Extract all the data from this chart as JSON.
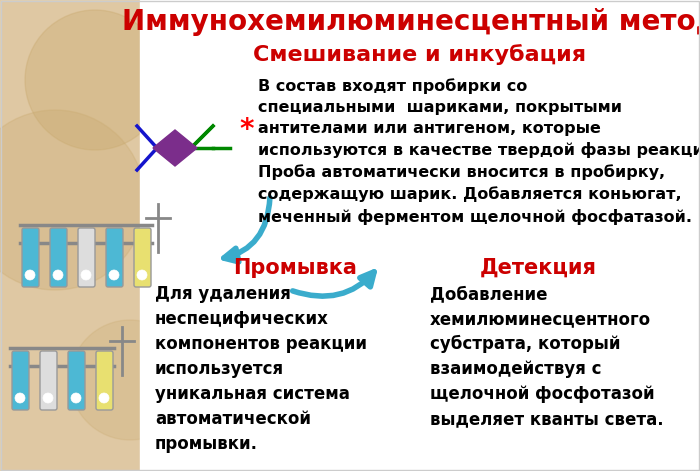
{
  "bg_color": "#f0ebe0",
  "bg_white": "#ffffff",
  "left_panel_color": "#d4b483",
  "title": "Иммунохемилюминесцентный метод",
  "title_color": "#cc0000",
  "title_fontsize": 20,
  "subtitle": "Смешивание и инкубация",
  "subtitle_color": "#cc0000",
  "subtitle_fontsize": 16,
  "section1_title": "Промывка",
  "section1_title_color": "#cc0000",
  "section1_fontsize": 15,
  "section1_text": "Для удаления\nнеспецифических\nкомпонентов реакции\nиспользуется\nуникальная система\nавтоматической\nпромывки.",
  "section2_title": "Детекция",
  "section2_title_color": "#cc0000",
  "section2_fontsize": 15,
  "section2_text": "Добавление\nхемилюминесцентного\nсубстрата, который\nвзаимодействуя с\nщелочной фосфотазой\nвыделяет кванты света.",
  "main_text": "В состав входят пробирки со\nспециальными  шариками, покрытыми\nантителами или антигеном, которые\nиспользуются в качестве твердой фазы реакции.\nПроба автоматически вносится в пробирку,\nсодержащую шарик. Добавляется коньюгат,\nмеченный ферментом щелочной фосфатазой.",
  "main_text_color": "#000000",
  "main_text_fontsize": 11.5,
  "body_text_color": "#000000",
  "body_text_fontsize": 12,
  "arrow_color": "#3aaccc",
  "diamond_color": "#7b2d8b",
  "line_blue": "#1414cc",
  "line_green": "#008800",
  "tube_blue": "#4db8d4",
  "tube_yellow": "#e8e070",
  "tube_white": "#e8e8e8"
}
